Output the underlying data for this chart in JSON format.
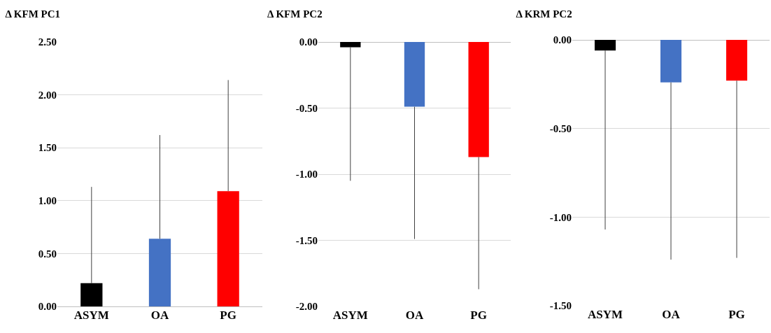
{
  "chart_data": [
    {
      "type": "bar",
      "title": "Δ KFM PC1",
      "categories": [
        "ASYM",
        "OA",
        "PG"
      ],
      "values": [
        0.22,
        0.64,
        1.09
      ],
      "colors": [
        "#000000",
        "#4472c4",
        "#ff0000"
      ],
      "errors": [
        [
          0.22,
          1.13
        ],
        [
          0.64,
          1.62
        ],
        [
          1.09,
          2.14
        ]
      ],
      "ylim": [
        0,
        2.5
      ],
      "yticks": [
        {
          "value": 0,
          "label": "0.00"
        },
        {
          "value": 0.5,
          "label": "0.50"
        },
        {
          "value": 1,
          "label": "1.00"
        },
        {
          "value": 1.5,
          "label": "1.50"
        },
        {
          "value": 2,
          "label": "2.00"
        },
        {
          "value": 2.5,
          "label": "2.50"
        }
      ],
      "grid": "y"
    },
    {
      "type": "bar",
      "title": "Δ KFM PC2",
      "categories": [
        "ASYM",
        "OA",
        "PG"
      ],
      "values": [
        -0.04,
        -0.49,
        -0.87
      ],
      "colors": [
        "#000000",
        "#4472c4",
        "#ff0000"
      ],
      "errors": [
        [
          -1.05,
          -0.04
        ],
        [
          -1.49,
          -0.49
        ],
        [
          -1.87,
          -0.87
        ]
      ],
      "ylim": [
        -2,
        0
      ],
      "yticks": [
        {
          "value": -2,
          "label": "-2.00"
        },
        {
          "value": -1.5,
          "label": "-1.50"
        },
        {
          "value": -1,
          "label": "-1.00"
        },
        {
          "value": -0.5,
          "label": "-0.50"
        },
        {
          "value": 0,
          "label": "0.00"
        }
      ],
      "grid": "y"
    },
    {
      "type": "bar",
      "title": "Δ KRM PC2",
      "categories": [
        "ASYM",
        "OA",
        "PG"
      ],
      "values": [
        -0.06,
        -0.24,
        -0.23
      ],
      "colors": [
        "#000000",
        "#4472c4",
        "#ff0000"
      ],
      "errors": [
        [
          -1.07,
          -0.06
        ],
        [
          -1.24,
          -0.24
        ],
        [
          -1.23,
          -0.23
        ]
      ],
      "ylim": [
        -1.5,
        0
      ],
      "yticks": [
        {
          "value": -1.5,
          "label": "-1.50"
        },
        {
          "value": -1,
          "label": "-1.00"
        },
        {
          "value": -0.5,
          "label": "-0.50"
        },
        {
          "value": 0,
          "label": "0.00"
        }
      ],
      "grid": "y"
    }
  ]
}
